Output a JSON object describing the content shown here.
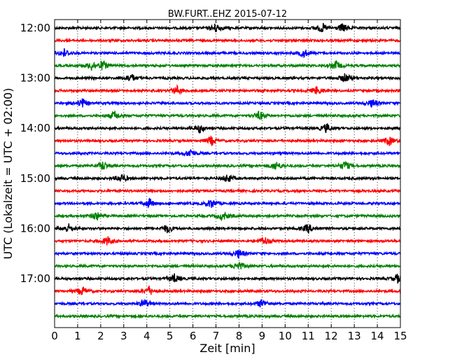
{
  "chart_data": {
    "type": "line",
    "title": "BW.FURT..EHZ 2015-07-12",
    "xlabel": "Zeit  [min]",
    "ylabel": "UTC (Lokalzeit = UTC + 02:00)",
    "xlim": [
      0,
      15
    ],
    "x_ticks": [
      "0",
      "1",
      "2",
      "3",
      "4",
      "5",
      "6",
      "7",
      "8",
      "9",
      "10",
      "11",
      "12",
      "13",
      "14",
      "15"
    ],
    "y_ticks": [
      "12:00",
      "13:00",
      "14:00",
      "15:00",
      "16:00",
      "17:00"
    ],
    "grid": true,
    "trace_interval_min": 15,
    "trace_color_cycle": [
      "#000000",
      "#ff0000",
      "#0000ff",
      "#008000"
    ],
    "traces": [
      {
        "start": "12:00",
        "color": "#000000",
        "events_min": [
          7.0,
          11.6,
          12.5
        ]
      },
      {
        "start": "12:15",
        "color": "#ff0000",
        "events_min": []
      },
      {
        "start": "12:30",
        "color": "#0000ff",
        "events_min": [
          0.4,
          10.8
        ]
      },
      {
        "start": "12:45",
        "color": "#008000",
        "events_min": [
          1.6,
          2.1,
          12.2
        ]
      },
      {
        "start": "13:00",
        "color": "#000000",
        "events_min": [
          3.3,
          12.6
        ]
      },
      {
        "start": "13:15",
        "color": "#ff0000",
        "events_min": [
          5.3,
          11.4
        ]
      },
      {
        "start": "13:30",
        "color": "#0000ff",
        "events_min": [
          1.2,
          13.8
        ]
      },
      {
        "start": "13:45",
        "color": "#008000",
        "events_min": [
          2.6,
          8.9
        ]
      },
      {
        "start": "14:00",
        "color": "#000000",
        "events_min": [
          6.3,
          11.8
        ]
      },
      {
        "start": "14:15",
        "color": "#ff0000",
        "events_min": [
          6.8,
          14.5
        ]
      },
      {
        "start": "14:30",
        "color": "#0000ff",
        "events_min": [
          5.9
        ]
      },
      {
        "start": "14:45",
        "color": "#008000",
        "events_min": [
          2.1,
          9.6,
          12.6
        ]
      },
      {
        "start": "15:00",
        "color": "#000000",
        "events_min": [
          2.9,
          7.5
        ]
      },
      {
        "start": "15:15",
        "color": "#ff0000",
        "events_min": []
      },
      {
        "start": "15:30",
        "color": "#0000ff",
        "events_min": [
          4.1,
          6.8
        ]
      },
      {
        "start": "15:45",
        "color": "#008000",
        "events_min": [
          1.8,
          7.3
        ]
      },
      {
        "start": "16:00",
        "color": "#000000",
        "events_min": [
          0.6,
          4.9,
          11.0
        ]
      },
      {
        "start": "16:15",
        "color": "#ff0000",
        "events_min": [
          2.3,
          9.1
        ]
      },
      {
        "start": "16:30",
        "color": "#0000ff",
        "events_min": [
          8.0
        ]
      },
      {
        "start": "16:45",
        "color": "#008000",
        "events_min": [
          8.0
        ]
      },
      {
        "start": "17:00",
        "color": "#000000",
        "events_min": [
          5.2,
          14.9
        ]
      },
      {
        "start": "17:15",
        "color": "#ff0000",
        "events_min": [
          1.2,
          4.1
        ]
      },
      {
        "start": "17:30",
        "color": "#0000ff",
        "events_min": [
          3.9,
          9.0
        ]
      },
      {
        "start": "17:45",
        "color": "#008000",
        "events_min": []
      }
    ]
  }
}
